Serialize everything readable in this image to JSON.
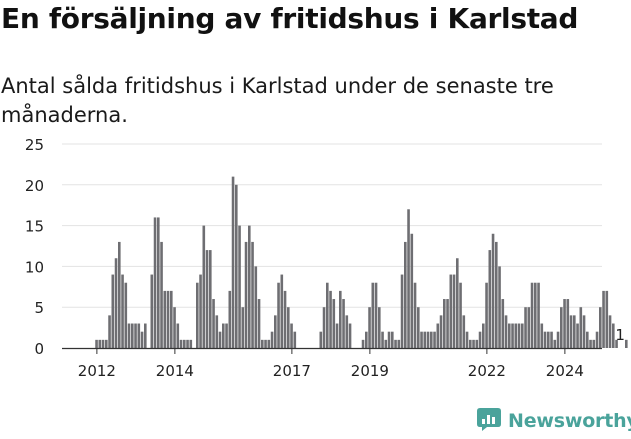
{
  "title": "En försäljning av fritidshus i Karlstad",
  "subtitle": "Antal sålda fritidshus i Karlstad under de senaste tre månaderna.",
  "brand": {
    "name": "Newsworthy",
    "color": "#4aa39b",
    "icon": "newsworthy-chart-logo-icon"
  },
  "colors": {
    "bar": "#6e6e72",
    "highlight": "#2ba5a0",
    "grid": "#e3e3e3",
    "axis": "#333333",
    "text": "#222222"
  },
  "chart_data": {
    "type": "bar",
    "title": "En försäljning av fritidshus i Karlstad",
    "subtitle": "Antal sålda fritidshus i Karlstad under de senaste tre månaderna.",
    "xlabel": "",
    "ylabel": "",
    "ylim": [
      0,
      25
    ],
    "yticks": [
      0,
      5,
      10,
      15,
      20,
      25
    ],
    "xticks": [
      {
        "label": "2012",
        "index": 3
      },
      {
        "label": "2014",
        "index": 27
      },
      {
        "label": "2017",
        "index": 63
      },
      {
        "label": "2019",
        "index": 87
      },
      {
        "label": "2022",
        "index": 123
      },
      {
        "label": "2024",
        "index": 147
      }
    ],
    "grid": "horizontal",
    "values": [
      0,
      0,
      0,
      1,
      1,
      1,
      1,
      4,
      9,
      11,
      13,
      9,
      8,
      3,
      3,
      3,
      3,
      2,
      3,
      0,
      9,
      16,
      16,
      13,
      7,
      7,
      7,
      5,
      3,
      1,
      1,
      1,
      1,
      0,
      8,
      9,
      15,
      12,
      12,
      6,
      4,
      2,
      3,
      3,
      7,
      21,
      20,
      15,
      5,
      13,
      15,
      13,
      10,
      6,
      1,
      1,
      1,
      2,
      4,
      8,
      9,
      7,
      5,
      3,
      2,
      0,
      0,
      0,
      0,
      0,
      0,
      0,
      2,
      5,
      8,
      7,
      6,
      3,
      7,
      6,
      4,
      3,
      0,
      0,
      0,
      1,
      2,
      5,
      8,
      8,
      5,
      2,
      1,
      2,
      2,
      1,
      1,
      9,
      13,
      17,
      14,
      8,
      5,
      2,
      2,
      2,
      2,
      2,
      3,
      4,
      6,
      6,
      9,
      9,
      11,
      8,
      4,
      2,
      1,
      1,
      1,
      2,
      3,
      8,
      12,
      14,
      13,
      10,
      6,
      4,
      3,
      3,
      3,
      3,
      3,
      5,
      5,
      8,
      8,
      8,
      3,
      2,
      2,
      2,
      1,
      2,
      5,
      6,
      6,
      4,
      4,
      3,
      5,
      4,
      2,
      1,
      1,
      2,
      5,
      7,
      7,
      4,
      3,
      1,
      0,
      0,
      1
    ],
    "highlight_index": 164,
    "annotations": [
      {
        "index": 164,
        "label": "1"
      }
    ]
  }
}
